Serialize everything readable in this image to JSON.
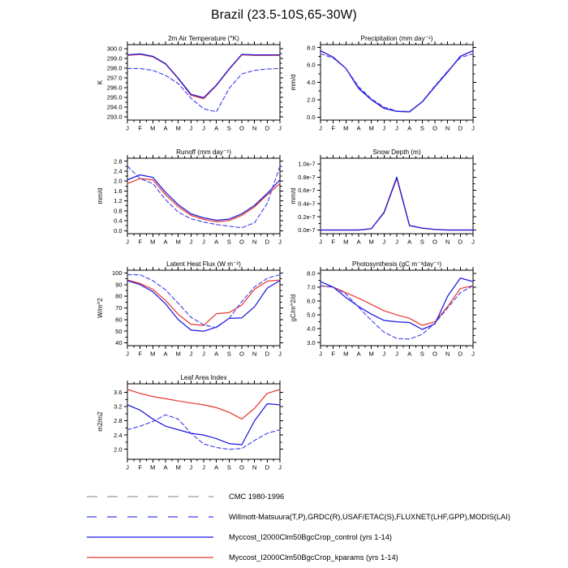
{
  "title": "Brazil (23.5-10S,65-30W)",
  "months": [
    "J",
    "F",
    "M",
    "A",
    "M",
    "J",
    "J",
    "A",
    "S",
    "O",
    "N",
    "D",
    "J"
  ],
  "colors": {
    "control": "#1a17e0",
    "kparams": "#e8392f",
    "obs": "#3d3df0",
    "cmc": "#9a9a9a",
    "axis": "#000000",
    "background": "#ffffff"
  },
  "legend": {
    "items": [
      {
        "label": "CMC 1980-1996",
        "color": "cmc",
        "dash": "13 12"
      },
      {
        "label": "Willmott-Matsuura(T,P),GRDC(R),USAF/ETAC(S),FLUXNET(LHF,GPP),MODIS(LAI)",
        "color": "obs",
        "dash": "12 13"
      },
      {
        "label": "Myccost_I2000Clm50BgcCrop_control (yrs 1-14)",
        "color": "control",
        "dash": null
      },
      {
        "label": "Myccost_I2000Clm50BgcCrop_kparams (yrs 1-14)",
        "color": "kparams",
        "dash": null
      }
    ]
  },
  "chart_data": [
    {
      "type": "line",
      "title": "2m Air Temperature (°K)",
      "ylabel": "K",
      "ylim": [
        292.65,
        300.4
      ],
      "grid": false,
      "yticks": [
        {
          "v": 293.0,
          "label": "293.0"
        },
        {
          "v": 294.0,
          "label": "294.0"
        },
        {
          "v": 295.0,
          "label": "295.0"
        },
        {
          "v": 296.0,
          "label": "296.0"
        },
        {
          "v": 297.0,
          "label": "297.0"
        },
        {
          "v": 298.0,
          "label": "298.0"
        },
        {
          "v": 299.0,
          "label": "299.0"
        },
        {
          "v": 300.0,
          "label": "300.0"
        }
      ],
      "series": [
        {
          "name": "kparams",
          "color": "kparams",
          "dash": null,
          "values": [
            299.3,
            299.4,
            299.15,
            298.4,
            296.9,
            295.2,
            294.85,
            296.2,
            297.85,
            299.35,
            299.3,
            299.3,
            299.3
          ]
        },
        {
          "name": "control",
          "color": "control",
          "dash": null,
          "values": [
            299.35,
            299.45,
            299.2,
            298.45,
            296.95,
            295.3,
            294.95,
            296.25,
            297.9,
            299.4,
            299.35,
            299.35,
            299.35
          ]
        },
        {
          "name": "obs",
          "color": "obs",
          "dash": "5 3",
          "values": [
            297.95,
            297.95,
            297.75,
            297.25,
            296.4,
            294.9,
            293.8,
            293.5,
            295.9,
            297.4,
            297.75,
            297.9,
            297.95
          ]
        }
      ]
    },
    {
      "type": "line",
      "title": "Precipitation (mm day⁻¹)",
      "ylabel": "mm/d",
      "ylim": [
        -0.35,
        8.35
      ],
      "grid": false,
      "yticks": [
        {
          "v": 0.0,
          "label": "0.0"
        },
        {
          "v": 2.0,
          "label": "2.0"
        },
        {
          "v": 4.0,
          "label": "4.0"
        },
        {
          "v": 6.0,
          "label": "6.0"
        },
        {
          "v": 8.0,
          "label": "8.0"
        }
      ],
      "series": [
        {
          "name": "kparams",
          "color": "kparams",
          "dash": null,
          "values": [
            7.65,
            6.9,
            5.6,
            3.3,
            2.0,
            1.0,
            0.65,
            0.6,
            1.75,
            3.5,
            5.2,
            7.0,
            7.65
          ]
        },
        {
          "name": "control",
          "color": "control",
          "dash": null,
          "values": [
            7.65,
            6.9,
            5.6,
            3.3,
            2.0,
            1.0,
            0.65,
            0.6,
            1.75,
            3.5,
            5.2,
            7.0,
            7.65
          ]
        },
        {
          "name": "obs",
          "color": "obs",
          "dash": "5 3",
          "values": [
            7.3,
            6.8,
            5.6,
            3.5,
            2.1,
            1.15,
            0.7,
            0.65,
            1.8,
            3.6,
            5.3,
            6.85,
            7.3
          ]
        }
      ]
    },
    {
      "type": "line",
      "title": "Runoff (mm day⁻¹)",
      "ylabel": "mm/d",
      "ylim": [
        -0.12,
        2.92
      ],
      "grid": false,
      "yticks": [
        {
          "v": 0.0,
          "label": "0.0"
        },
        {
          "v": 0.4,
          "label": "0.4"
        },
        {
          "v": 0.8,
          "label": "0.8"
        },
        {
          "v": 1.2,
          "label": "1.2"
        },
        {
          "v": 1.6,
          "label": "1.6"
        },
        {
          "v": 2.0,
          "label": "2.0"
        },
        {
          "v": 2.4,
          "label": "2.4"
        },
        {
          "v": 2.8,
          "label": "2.8"
        }
      ],
      "series": [
        {
          "name": "kparams",
          "color": "kparams",
          "dash": null,
          "values": [
            1.9,
            2.1,
            2.05,
            1.45,
            0.97,
            0.62,
            0.46,
            0.36,
            0.41,
            0.62,
            0.96,
            1.45,
            1.9
          ]
        },
        {
          "name": "control",
          "color": "control",
          "dash": null,
          "values": [
            2.05,
            2.25,
            2.15,
            1.55,
            1.05,
            0.68,
            0.52,
            0.42,
            0.47,
            0.68,
            1.02,
            1.5,
            2.05
          ]
        },
        {
          "name": "obs",
          "color": "obs",
          "dash": "5 3",
          "values": [
            2.6,
            2.1,
            1.9,
            1.25,
            0.75,
            0.48,
            0.35,
            0.25,
            0.18,
            0.12,
            0.32,
            1.1,
            2.6
          ]
        }
      ]
    },
    {
      "type": "line",
      "title": "Snow Depth (m)",
      "ylabel": "mm/d",
      "ylim": [
        -5.5e-09,
        1.085e-07
      ],
      "grid": false,
      "yticks": [
        {
          "v": 0.0,
          "label": "0.0e-7"
        },
        {
          "v": 2e-08,
          "label": "0.2e-7"
        },
        {
          "v": 4e-08,
          "label": "0.4e-7"
        },
        {
          "v": 6e-08,
          "label": "0.6e-7"
        },
        {
          "v": 8e-08,
          "label": "0.8e-7"
        },
        {
          "v": 1e-07,
          "label": "1.0e-7"
        }
      ],
      "series": [
        {
          "name": "kparams",
          "color": "kparams",
          "dash": null,
          "values": [
            0,
            0,
            0,
            0,
            2.2e-09,
            2.6e-08,
            7.8e-08,
            6.5e-09,
            2.8e-09,
            1e-09,
            0,
            0,
            0
          ]
        },
        {
          "name": "control",
          "color": "control",
          "dash": null,
          "values": [
            0,
            0,
            0,
            0,
            2e-09,
            2.7e-08,
            8e-08,
            7e-09,
            3e-09,
            1e-09,
            0,
            0,
            0
          ]
        }
      ]
    },
    {
      "type": "line",
      "title": "Latent Heat Flux (W m⁻²)",
      "ylabel": "W/m^2",
      "ylim": [
        37.6,
        102.4
      ],
      "grid": false,
      "yticks": [
        {
          "v": 40,
          "label": "40"
        },
        {
          "v": 50,
          "label": "50"
        },
        {
          "v": 60,
          "label": "60"
        },
        {
          "v": 70,
          "label": "70"
        },
        {
          "v": 80,
          "label": "80"
        },
        {
          "v": 90,
          "label": "90"
        },
        {
          "v": 100,
          "label": "100"
        }
      ],
      "series": [
        {
          "name": "kparams",
          "color": "kparams",
          "dash": null,
          "values": [
            94,
            91,
            86,
            76.5,
            64.5,
            56,
            55,
            65,
            66,
            72.5,
            86,
            93,
            94
          ]
        },
        {
          "name": "control",
          "color": "control",
          "dash": null,
          "values": [
            93.5,
            90,
            84,
            73.5,
            60,
            51,
            50,
            53.5,
            61,
            61.5,
            71,
            87,
            93.5
          ]
        },
        {
          "name": "obs",
          "color": "obs",
          "dash": "5 3",
          "values": [
            98.5,
            98.5,
            93.5,
            85.5,
            74,
            62,
            55.5,
            53,
            61,
            75.5,
            88,
            95.5,
            98.5
          ]
        }
      ]
    },
    {
      "type": "line",
      "title": "Photosynthesis (gC m⁻²day⁻¹)",
      "ylabel": "gC/m^2/d",
      "ylim": [
        2.78,
        8.22
      ],
      "grid": false,
      "yticks": [
        {
          "v": 3.0,
          "label": "3.0"
        },
        {
          "v": 4.0,
          "label": "4.0"
        },
        {
          "v": 5.0,
          "label": "5.0"
        },
        {
          "v": 6.0,
          "label": "6.0"
        },
        {
          "v": 7.0,
          "label": "7.0"
        },
        {
          "v": 8.0,
          "label": "8.0"
        }
      ],
      "series": [
        {
          "name": "kparams",
          "color": "kparams",
          "dash": null,
          "values": [
            7.1,
            7.0,
            6.6,
            6.2,
            5.75,
            5.3,
            5.0,
            4.75,
            4.25,
            4.5,
            5.6,
            6.9,
            7.1
          ]
        },
        {
          "name": "control",
          "color": "control",
          "dash": null,
          "values": [
            7.4,
            7.0,
            6.25,
            5.6,
            5.05,
            4.6,
            4.5,
            4.45,
            3.95,
            4.35,
            6.35,
            7.65,
            7.4
          ]
        },
        {
          "name": "obs",
          "color": "obs",
          "dash": "5 3",
          "values": [
            7.1,
            7.0,
            6.5,
            5.55,
            4.6,
            3.75,
            3.3,
            3.25,
            3.6,
            4.4,
            5.5,
            6.6,
            7.1
          ]
        }
      ]
    },
    {
      "type": "line",
      "title": "Leaf Area Index",
      "ylabel": "m2/m2",
      "ylim": [
        1.72,
        3.84
      ],
      "grid": false,
      "yticks": [
        {
          "v": 2.0,
          "label": "2.0"
        },
        {
          "v": 2.4,
          "label": "2.4"
        },
        {
          "v": 2.8,
          "label": "2.8"
        },
        {
          "v": 3.2,
          "label": "3.2"
        },
        {
          "v": 3.6,
          "label": "3.6"
        }
      ],
      "series": [
        {
          "name": "kparams",
          "color": "kparams",
          "dash": null,
          "values": [
            3.68,
            3.57,
            3.48,
            3.42,
            3.36,
            3.3,
            3.25,
            3.17,
            3.04,
            2.85,
            3.15,
            3.57,
            3.68
          ]
        },
        {
          "name": "control",
          "color": "control",
          "dash": null,
          "values": [
            3.25,
            3.1,
            2.85,
            2.65,
            2.55,
            2.45,
            2.4,
            2.3,
            2.16,
            2.13,
            2.8,
            3.28,
            3.25
          ]
        },
        {
          "name": "obs",
          "color": "obs",
          "dash": "5 3",
          "values": [
            2.55,
            2.65,
            2.78,
            2.97,
            2.85,
            2.45,
            2.15,
            2.05,
            2.0,
            2.02,
            2.25,
            2.45,
            2.55
          ]
        }
      ]
    }
  ]
}
